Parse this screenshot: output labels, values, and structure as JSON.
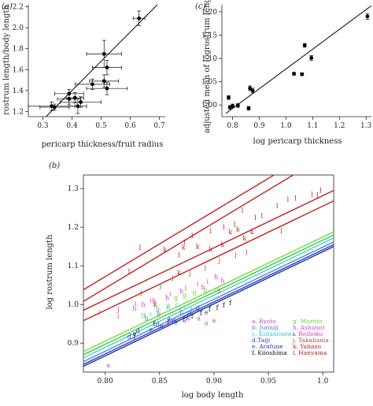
{
  "chart_data": [
    {
      "panel": "(a)",
      "type": "scatter",
      "xlabel": "pericarp thickness/fruit radius",
      "ylabel": "rostrum length/body length",
      "xlim": [
        0.25,
        0.72
      ],
      "ylim": [
        1.15,
        2.22
      ],
      "xticks": [
        "0.3",
        "0.4",
        "0.5",
        "0.6",
        "0.7"
      ],
      "yticks": [
        "1.2",
        "1.4",
        "1.6",
        "1.8",
        "2.0",
        "2.2"
      ],
      "points": [
        {
          "x": 0.33,
          "y": 1.25,
          "xerr": 0.08,
          "yerr": 0.04
        },
        {
          "x": 0.34,
          "y": 1.24,
          "xerr": 0.05,
          "yerr": 0.03
        },
        {
          "x": 0.39,
          "y": 1.32,
          "xerr": 0.04,
          "yerr": 0.05
        },
        {
          "x": 0.39,
          "y": 1.37,
          "xerr": 0.05,
          "yerr": 0.04
        },
        {
          "x": 0.41,
          "y": 1.33,
          "xerr": 0.03,
          "yerr": 0.05
        },
        {
          "x": 0.42,
          "y": 1.25,
          "xerr": 0.03,
          "yerr": 0.07
        },
        {
          "x": 0.43,
          "y": 1.29,
          "xerr": 0.07,
          "yerr": 0.05
        },
        {
          "x": 0.47,
          "y": 1.46,
          "xerr": 0.06,
          "yerr": 0.05
        },
        {
          "x": 0.51,
          "y": 1.75,
          "xerr": 0.06,
          "yerr": 0.13
        },
        {
          "x": 0.51,
          "y": 1.49,
          "xerr": 0.05,
          "yerr": 0.06
        },
        {
          "x": 0.52,
          "y": 1.62,
          "xerr": 0.05,
          "yerr": 0.07
        },
        {
          "x": 0.52,
          "y": 1.42,
          "xerr": 0.07,
          "yerr": 0.06
        },
        {
          "x": 0.63,
          "y": 2.09,
          "xerr": 0.02,
          "yerr": 0.07
        }
      ],
      "fit": {
        "x": [
          0.3,
          0.7
        ],
        "y": [
          1.12,
          2.24
        ]
      }
    },
    {
      "panel": "(c)",
      "type": "scatter",
      "xlabel": "log pericarp thickness",
      "ylabel": "adjusted mean of logrostrum length",
      "xlim": [
        0.76,
        1.32
      ],
      "ylim": [
        0.975,
        1.215
      ],
      "xticks": [
        "0.8",
        "0.9",
        "1.0",
        "1.1",
        "1.2",
        "1.3"
      ],
      "yticks": [
        "1.00",
        "1.05",
        "1.10",
        "1.15",
        "1.20"
      ],
      "points": [
        {
          "x": 0.785,
          "y": 1.016,
          "yerr": 0.004
        },
        {
          "x": 0.79,
          "y": 0.995,
          "yerr": 0.004
        },
        {
          "x": 0.8,
          "y": 0.998,
          "yerr": 0.004
        },
        {
          "x": 0.82,
          "y": 0.999,
          "yerr": 0.004
        },
        {
          "x": 0.86,
          "y": 0.993,
          "yerr": 0.004
        },
        {
          "x": 0.865,
          "y": 1.036,
          "yerr": 0.005
        },
        {
          "x": 0.875,
          "y": 1.031,
          "yerr": 0.005
        },
        {
          "x": 1.03,
          "y": 1.067,
          "yerr": 0.003
        },
        {
          "x": 1.06,
          "y": 1.066,
          "yerr": 0.003
        },
        {
          "x": 1.07,
          "y": 1.128,
          "yerr": 0.004
        },
        {
          "x": 1.095,
          "y": 1.101,
          "yerr": 0.005
        },
        {
          "x": 1.305,
          "y": 1.19,
          "yerr": 0.006
        }
      ],
      "fit": {
        "x": [
          0.775,
          1.32
        ],
        "y": [
          0.982,
          1.213
        ]
      }
    },
    {
      "panel": "(b)",
      "type": "scatter",
      "xlabel": "log body length",
      "ylabel": "log rostrum length",
      "xlim": [
        0.78,
        1.01
      ],
      "ylim": [
        0.825,
        1.335
      ],
      "xticks": [
        "0.80",
        "0.85",
        "0.90",
        "0.95",
        "1.0"
      ],
      "yticks": [
        "0.9",
        "1.0",
        "1.1",
        "1.2",
        "1.3"
      ],
      "legend": [
        {
          "label": "a. Kyoto",
          "color": "#c23fd6"
        },
        {
          "label": "b. Junniji",
          "color": "#4f6fe0"
        },
        {
          "label": "c. Kiitanosawa",
          "color": "#2fc9c9"
        },
        {
          "label": "d.Taiji",
          "color": "#2b3fd0"
        },
        {
          "label": "e. Arafune",
          "color": "#1f3faa"
        },
        {
          "label": "f. Kiioshima",
          "color": "#111111"
        },
        {
          "label": "g. Muroto",
          "color": "#5fdc2f"
        },
        {
          "label": "h. Ashizuri",
          "color": "#d13fd1"
        },
        {
          "label": "i. Reihoku",
          "color": "#d83fb0"
        },
        {
          "label": "j. Takahama",
          "color": "#b0503a"
        },
        {
          "label": "k. Yahazu",
          "color": "#c0201a"
        },
        {
          "label": "l. Hanyama",
          "color": "#b01a1a"
        }
      ],
      "lines": [
        {
          "color": "#c0221a",
          "y0": 1.038,
          "y1": 1.428
        },
        {
          "color": "#c0221a",
          "y0": 1.008,
          "y1": 1.398
        },
        {
          "color": "#c0221a",
          "y0": 0.985,
          "y1": 1.295
        },
        {
          "color": "#c0221a",
          "y0": 0.958,
          "y1": 1.268
        },
        {
          "color": "#6fdc3f",
          "y0": 0.878,
          "y1": 1.188
        },
        {
          "color": "#3fc93f",
          "y0": 0.87,
          "y1": 1.18
        },
        {
          "color": "#3fd6c9",
          "y0": 0.862,
          "y1": 1.172
        },
        {
          "color": "#5a7fe0",
          "y0": 0.852,
          "y1": 1.162
        },
        {
          "color": "#1f3fcf",
          "y0": 0.845,
          "y1": 1.155
        },
        {
          "color": "#1f2f9f",
          "y0": 0.84,
          "y1": 1.15
        }
      ],
      "points": [
        {
          "l": "l",
          "x": 0.998,
          "y": 1.295
        },
        {
          "l": "l",
          "x": 0.995,
          "y": 1.283
        },
        {
          "l": "l",
          "x": 0.99,
          "y": 1.285
        },
        {
          "l": "l",
          "x": 0.975,
          "y": 1.275
        },
        {
          "l": "l",
          "x": 0.968,
          "y": 1.272
        },
        {
          "l": "l",
          "x": 0.958,
          "y": 1.255
        },
        {
          "l": "l",
          "x": 0.944,
          "y": 1.23
        },
        {
          "l": "l",
          "x": 0.938,
          "y": 1.225
        },
        {
          "l": "l",
          "x": 0.926,
          "y": 1.243
        },
        {
          "l": "l",
          "x": 0.919,
          "y": 1.207
        },
        {
          "l": "l",
          "x": 0.909,
          "y": 1.2
        },
        {
          "l": "l",
          "x": 0.897,
          "y": 1.19
        },
        {
          "l": "l",
          "x": 0.88,
          "y": 1.178
        },
        {
          "l": "l",
          "x": 0.873,
          "y": 1.161
        },
        {
          "l": "l",
          "x": 0.868,
          "y": 1.128
        },
        {
          "l": "l",
          "x": 0.832,
          "y": 1.147
        },
        {
          "l": "l",
          "x": 0.822,
          "y": 1.085
        },
        {
          "l": "l",
          "x": 0.962,
          "y": 1.19
        },
        {
          "l": "k",
          "x": 0.915,
          "y": 1.188
        },
        {
          "l": "k",
          "x": 0.922,
          "y": 1.195
        },
        {
          "l": "k",
          "x": 0.928,
          "y": 1.172
        },
        {
          "l": "k",
          "x": 0.935,
          "y": 1.188
        },
        {
          "l": "k",
          "x": 0.908,
          "y": 1.155
        },
        {
          "l": "k",
          "x": 0.897,
          "y": 1.143
        },
        {
          "l": "k",
          "x": 0.885,
          "y": 1.15
        },
        {
          "l": "k",
          "x": 0.872,
          "y": 1.148
        },
        {
          "l": "k",
          "x": 0.868,
          "y": 1.082
        },
        {
          "l": "k",
          "x": 0.855,
          "y": 1.142
        },
        {
          "l": "k",
          "x": 0.846,
          "y": 1.0
        },
        {
          "l": "j",
          "x": 0.93,
          "y": 1.138
        },
        {
          "l": "j",
          "x": 0.92,
          "y": 1.13
        },
        {
          "l": "j",
          "x": 0.905,
          "y": 1.115
        },
        {
          "l": "j",
          "x": 0.892,
          "y": 1.097
        },
        {
          "l": "j",
          "x": 0.878,
          "y": 1.082
        },
        {
          "l": "j",
          "x": 0.862,
          "y": 1.07
        },
        {
          "l": "j",
          "x": 0.851,
          "y": 1.048
        },
        {
          "l": "j",
          "x": 0.833,
          "y": 1.032
        },
        {
          "l": "j",
          "x": 0.812,
          "y": 0.988
        },
        {
          "l": "j",
          "x": 0.905,
          "y": 1.038
        },
        {
          "l": "i",
          "x": 0.894,
          "y": 1.06
        },
        {
          "l": "i",
          "x": 0.885,
          "y": 1.053
        },
        {
          "l": "i",
          "x": 0.874,
          "y": 1.043
        },
        {
          "l": "i",
          "x": 0.86,
          "y": 1.028
        },
        {
          "l": "i",
          "x": 0.842,
          "y": 1.012
        },
        {
          "l": "i",
          "x": 0.828,
          "y": 1.002
        },
        {
          "l": "i",
          "x": 0.812,
          "y": 0.97
        },
        {
          "l": "i",
          "x": 0.795,
          "y": 0.98
        },
        {
          "l": "h",
          "x": 0.902,
          "y": 1.072
        },
        {
          "l": "h",
          "x": 0.908,
          "y": 1.062
        },
        {
          "l": "h",
          "x": 0.89,
          "y": 1.045
        },
        {
          "l": "h",
          "x": 0.87,
          "y": 1.035
        },
        {
          "l": "h",
          "x": 0.857,
          "y": 1.018
        },
        {
          "l": "h",
          "x": 0.845,
          "y": 1.01
        },
        {
          "l": "h",
          "x": 0.835,
          "y": 1.0
        },
        {
          "l": "h",
          "x": 0.827,
          "y": 0.99
        },
        {
          "l": "g",
          "x": 0.892,
          "y": 1.037
        },
        {
          "l": "g",
          "x": 0.882,
          "y": 1.032
        },
        {
          "l": "g",
          "x": 0.873,
          "y": 1.025
        },
        {
          "l": "g",
          "x": 0.865,
          "y": 1.018
        },
        {
          "l": "g",
          "x": 0.858,
          "y": 0.998
        },
        {
          "l": "g",
          "x": 0.848,
          "y": 0.99
        },
        {
          "l": "g",
          "x": 0.835,
          "y": 0.975
        },
        {
          "l": "g",
          "x": 0.902,
          "y": 1.04
        },
        {
          "l": "c",
          "x": 0.874,
          "y": 0.995
        },
        {
          "l": "c",
          "x": 0.866,
          "y": 1.0
        },
        {
          "l": "c",
          "x": 0.858,
          "y": 0.993
        },
        {
          "l": "c",
          "x": 0.85,
          "y": 0.985
        },
        {
          "l": "c",
          "x": 0.842,
          "y": 0.976
        },
        {
          "l": "c",
          "x": 0.88,
          "y": 0.985
        },
        {
          "l": "b",
          "x": 0.88,
          "y": 0.985
        },
        {
          "l": "b",
          "x": 0.87,
          "y": 0.98
        },
        {
          "l": "b",
          "x": 0.86,
          "y": 0.962
        },
        {
          "l": "b",
          "x": 0.849,
          "y": 0.975
        },
        {
          "l": "b",
          "x": 0.838,
          "y": 0.965
        },
        {
          "l": "d",
          "x": 0.885,
          "y": 0.99
        },
        {
          "l": "d",
          "x": 0.877,
          "y": 0.975
        },
        {
          "l": "d",
          "x": 0.863,
          "y": 0.958
        },
        {
          "l": "d",
          "x": 0.848,
          "y": 0.948
        },
        {
          "l": "d",
          "x": 0.83,
          "y": 0.932
        },
        {
          "l": "d",
          "x": 0.822,
          "y": 0.918
        },
        {
          "l": "e",
          "x": 0.893,
          "y": 0.98
        },
        {
          "l": "e",
          "x": 0.876,
          "y": 0.965
        },
        {
          "l": "e",
          "x": 0.865,
          "y": 0.955
        },
        {
          "l": "e",
          "x": 0.852,
          "y": 0.945
        },
        {
          "l": "e",
          "x": 0.842,
          "y": 0.935
        },
        {
          "l": "e",
          "x": 0.827,
          "y": 0.925
        },
        {
          "l": "f",
          "x": 0.915,
          "y": 1.005
        },
        {
          "l": "f",
          "x": 0.909,
          "y": 0.998
        },
        {
          "l": "f",
          "x": 0.903,
          "y": 0.992
        },
        {
          "l": "f",
          "x": 0.896,
          "y": 0.988
        },
        {
          "l": "f",
          "x": 0.888,
          "y": 0.978
        },
        {
          "l": "f",
          "x": 0.88,
          "y": 0.97
        },
        {
          "l": "f",
          "x": 0.872,
          "y": 0.962
        },
        {
          "l": "f",
          "x": 0.858,
          "y": 0.958
        },
        {
          "l": "f",
          "x": 0.845,
          "y": 0.95
        },
        {
          "l": "f",
          "x": 0.827,
          "y": 0.918
        },
        {
          "l": "a",
          "x": 0.9,
          "y": 0.96
        },
        {
          "l": "a",
          "x": 0.893,
          "y": 0.952
        },
        {
          "l": "a",
          "x": 0.886,
          "y": 0.965
        },
        {
          "l": "a",
          "x": 0.873,
          "y": 0.96
        },
        {
          "l": "a",
          "x": 0.858,
          "y": 0.952
        },
        {
          "l": "a",
          "x": 0.803,
          "y": 0.843
        }
      ]
    }
  ]
}
